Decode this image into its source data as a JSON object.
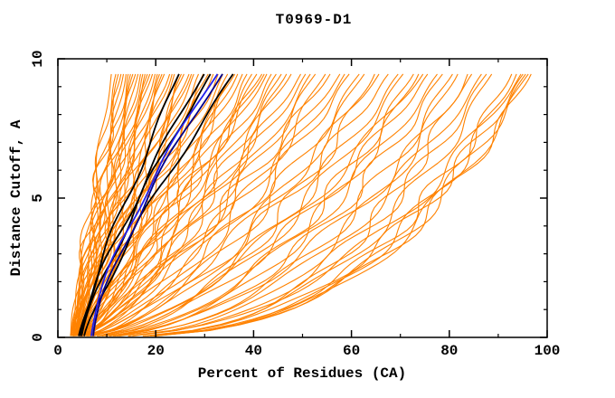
{
  "chart_data": {
    "type": "line",
    "title": "T0969-D1",
    "xlabel": "Percent of Residues (CA)",
    "ylabel": "Distance Cutoff, A",
    "xlim": [
      0,
      100
    ],
    "ylim": [
      0,
      10
    ],
    "x_major_ticks": [
      0,
      20,
      40,
      60,
      80,
      100
    ],
    "x_minor_step": 10,
    "y_major_ticks": [
      0,
      5,
      10
    ],
    "y_minor_step": 1,
    "grid": false,
    "legend": "none",
    "cutoff_max_plotted": 9.55,
    "cutoff_min_plotted": 0.05,
    "colors": {
      "orange": "#FF8200",
      "black": "#000000",
      "blue_bright": "#2020EE",
      "blue_dark": "#00008B",
      "frame": "#000000",
      "background": "#FFFFFF",
      "text": "#000000"
    },
    "series_groups": [
      {
        "name": "server-prediction-curves",
        "color_key": "orange",
        "count": 90
      },
      {
        "name": "highlighted-models-black",
        "color_key": "black",
        "count": 4
      },
      {
        "name": "highlighted-models-blue",
        "color_key": "blue_bright",
        "count": 2
      }
    ],
    "curve_model": "Each curve: percent(c) = b + (t-b)*(c/9.55)^p for cutoff c in [0.05,9.55]; b = percent at cutoff 0, t = percent at cutoff 9.55 (read from plot); small sinusoidal wobble added. Orange entries are [b,t]; black/blue entries are [b,t,p].",
    "curves": {
      "orange": [
        [
          3.0,
          11
        ],
        [
          2.6,
          12
        ],
        [
          3.4,
          12.5
        ],
        [
          2.8,
          13
        ],
        [
          2.5,
          13.5
        ],
        [
          3.8,
          14
        ],
        [
          3.2,
          14.5
        ],
        [
          4.2,
          15
        ],
        [
          3.1,
          15.5
        ],
        [
          2.7,
          16
        ],
        [
          3.6,
          16.5
        ],
        [
          4.6,
          17
        ],
        [
          2.7,
          17.5
        ],
        [
          3.1,
          18
        ],
        [
          3.9,
          18.5
        ],
        [
          2.9,
          19
        ],
        [
          3.4,
          19.5
        ],
        [
          4.3,
          20
        ],
        [
          2.6,
          20.5
        ],
        [
          3.5,
          21
        ],
        [
          5.0,
          21.5
        ],
        [
          3.3,
          22
        ],
        [
          4.0,
          23
        ],
        [
          3.0,
          23.5
        ],
        [
          2.8,
          24
        ],
        [
          4.7,
          25
        ],
        [
          2.8,
          25.5
        ],
        [
          3.6,
          26
        ],
        [
          5.2,
          27
        ],
        [
          3.3,
          27.5
        ],
        [
          3.0,
          28
        ],
        [
          4.1,
          29
        ],
        [
          3.7,
          30
        ],
        [
          5.5,
          31
        ],
        [
          2.9,
          31.5
        ],
        [
          3.2,
          32
        ],
        [
          4.4,
          33
        ],
        [
          2.9,
          34
        ],
        [
          5.0,
          35
        ],
        [
          3.8,
          36
        ],
        [
          3.1,
          36.5
        ],
        [
          4.6,
          37
        ],
        [
          3.3,
          38
        ],
        [
          5.6,
          39
        ],
        [
          4.0,
          40
        ],
        [
          3.5,
          41
        ],
        [
          4.8,
          42
        ],
        [
          2.7,
          42.5
        ],
        [
          3.1,
          43
        ],
        [
          5.2,
          44
        ],
        [
          3.9,
          45
        ],
        [
          4.4,
          46
        ],
        [
          3.4,
          47
        ],
        [
          5.8,
          48
        ],
        [
          4.1,
          50
        ],
        [
          3.6,
          51
        ],
        [
          4.9,
          52
        ],
        [
          3.2,
          53
        ],
        [
          5.4,
          55
        ],
        [
          4.2,
          56
        ],
        [
          3.7,
          58
        ],
        [
          5.0,
          59
        ],
        [
          3.4,
          60
        ],
        [
          4.5,
          62
        ],
        [
          3.9,
          63
        ],
        [
          5.6,
          65
        ],
        [
          4.0,
          66
        ],
        [
          3.5,
          68
        ],
        [
          4.8,
          70
        ],
        [
          3.8,
          71
        ],
        [
          5.2,
          73
        ],
        [
          4.3,
          74
        ],
        [
          3.6,
          75
        ],
        [
          4.6,
          76
        ],
        [
          3.9,
          78
        ],
        [
          5.3,
          79
        ],
        [
          4.1,
          81
        ],
        [
          3.7,
          82
        ],
        [
          4.9,
          84
        ],
        [
          4.3,
          85
        ],
        [
          3.8,
          87
        ],
        [
          5.1,
          88
        ],
        [
          4.5,
          89
        ],
        [
          4.0,
          93
        ],
        [
          4.7,
          94
        ],
        [
          3.8,
          95
        ],
        [
          5.0,
          95.5
        ],
        [
          4.2,
          96
        ],
        [
          4.6,
          96.5
        ],
        [
          3.9,
          97
        ]
      ],
      "black": [
        [
          4.2,
          25.0,
          1.15
        ],
        [
          4.5,
          30.2,
          1.25
        ],
        [
          4.8,
          31.5,
          1.22
        ],
        [
          5.3,
          36.2,
          1.18
        ]
      ],
      "blue": [
        [
          6.8,
          33.0,
          1.42
        ],
        [
          7.2,
          34.0,
          1.38
        ]
      ]
    }
  }
}
